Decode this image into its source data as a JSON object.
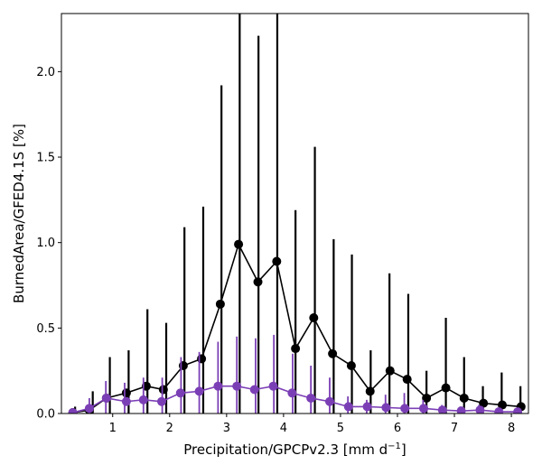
{
  "chart_data": {
    "type": "line",
    "xlabel": "Precipitation/GPCPv2.3 [mm d",
    "xlabel_sup": "−1",
    "xlabel_end": "]",
    "ylabel": "BurnedArea/GFED4.1S [%]",
    "xlim": [
      0.1,
      8.3
    ],
    "ylim": [
      0.0,
      2.34
    ],
    "xticks": [
      1,
      2,
      3,
      4,
      5,
      6,
      7,
      8
    ],
    "yticks": [
      0.0,
      0.5,
      1.0,
      1.5,
      2.0
    ],
    "xtick_labels": [
      "1",
      "2",
      "3",
      "4",
      "5",
      "6",
      "7",
      "8"
    ],
    "ytick_labels": [
      "0.0",
      "0.5",
      "1.0",
      "1.5",
      "2.0"
    ],
    "grid": false,
    "series": [
      {
        "color": "#000000",
        "x": [
          0.3,
          0.59,
          0.89,
          1.24,
          1.59,
          1.89,
          2.24,
          2.56,
          2.89,
          3.21,
          3.55,
          3.88,
          4.21,
          4.53,
          4.86,
          5.19,
          5.52,
          5.87,
          6.17,
          6.51,
          6.85,
          7.17,
          7.51,
          7.84,
          8.17
        ],
        "y": [
          0.005,
          0.02,
          0.09,
          0.12,
          0.16,
          0.14,
          0.28,
          0.32,
          0.64,
          0.99,
          0.77,
          0.89,
          0.38,
          0.56,
          0.35,
          0.28,
          0.13,
          0.25,
          0.2,
          0.09,
          0.15,
          0.09,
          0.06,
          0.05,
          0.04
        ],
        "err_x": [
          0.34,
          0.65,
          0.95,
          1.28,
          1.61,
          1.94,
          2.26,
          2.59,
          2.91,
          3.23,
          3.56,
          3.89,
          4.21,
          4.55,
          4.88,
          5.2,
          5.53,
          5.86,
          6.19,
          6.51,
          6.85,
          7.17,
          7.5,
          7.83,
          8.16
        ],
        "err_upper": [
          0.04,
          0.13,
          0.33,
          0.37,
          0.61,
          0.53,
          1.09,
          1.21,
          1.92,
          2.34,
          2.21,
          2.34,
          1.19,
          1.56,
          1.02,
          0.93,
          0.37,
          0.82,
          0.7,
          0.25,
          0.56,
          0.33,
          0.16,
          0.24,
          0.16
        ]
      },
      {
        "color": "#7b3fb5",
        "x": [
          0.3,
          0.59,
          0.89,
          1.24,
          1.54,
          1.86,
          2.19,
          2.52,
          2.85,
          3.18,
          3.49,
          3.82,
          4.15,
          4.48,
          4.81,
          5.14,
          5.47,
          5.8,
          6.13,
          6.46,
          6.79,
          7.12,
          7.45,
          7.78,
          8.11
        ],
        "y": [
          0.005,
          0.03,
          0.09,
          0.07,
          0.08,
          0.07,
          0.12,
          0.13,
          0.16,
          0.16,
          0.14,
          0.16,
          0.12,
          0.09,
          0.07,
          0.04,
          0.04,
          0.035,
          0.03,
          0.03,
          0.02,
          0.015,
          0.02,
          0.01,
          0.01
        ],
        "err_x": [
          0.3,
          0.59,
          0.88,
          1.21,
          1.54,
          1.87,
          2.2,
          2.52,
          2.85,
          3.18,
          3.51,
          3.83,
          4.16,
          4.48,
          4.81,
          5.13,
          5.46,
          5.79,
          6.12,
          6.45,
          6.78,
          7.1,
          7.43,
          7.76,
          8.09
        ],
        "err_upper": [
          0.02,
          0.09,
          0.19,
          0.18,
          0.21,
          0.21,
          0.33,
          0.36,
          0.42,
          0.45,
          0.44,
          0.46,
          0.35,
          0.28,
          0.21,
          0.1,
          0.08,
          0.11,
          0.12,
          0.08,
          0.05,
          0.04,
          0.05,
          0.03,
          0.03
        ]
      }
    ]
  }
}
